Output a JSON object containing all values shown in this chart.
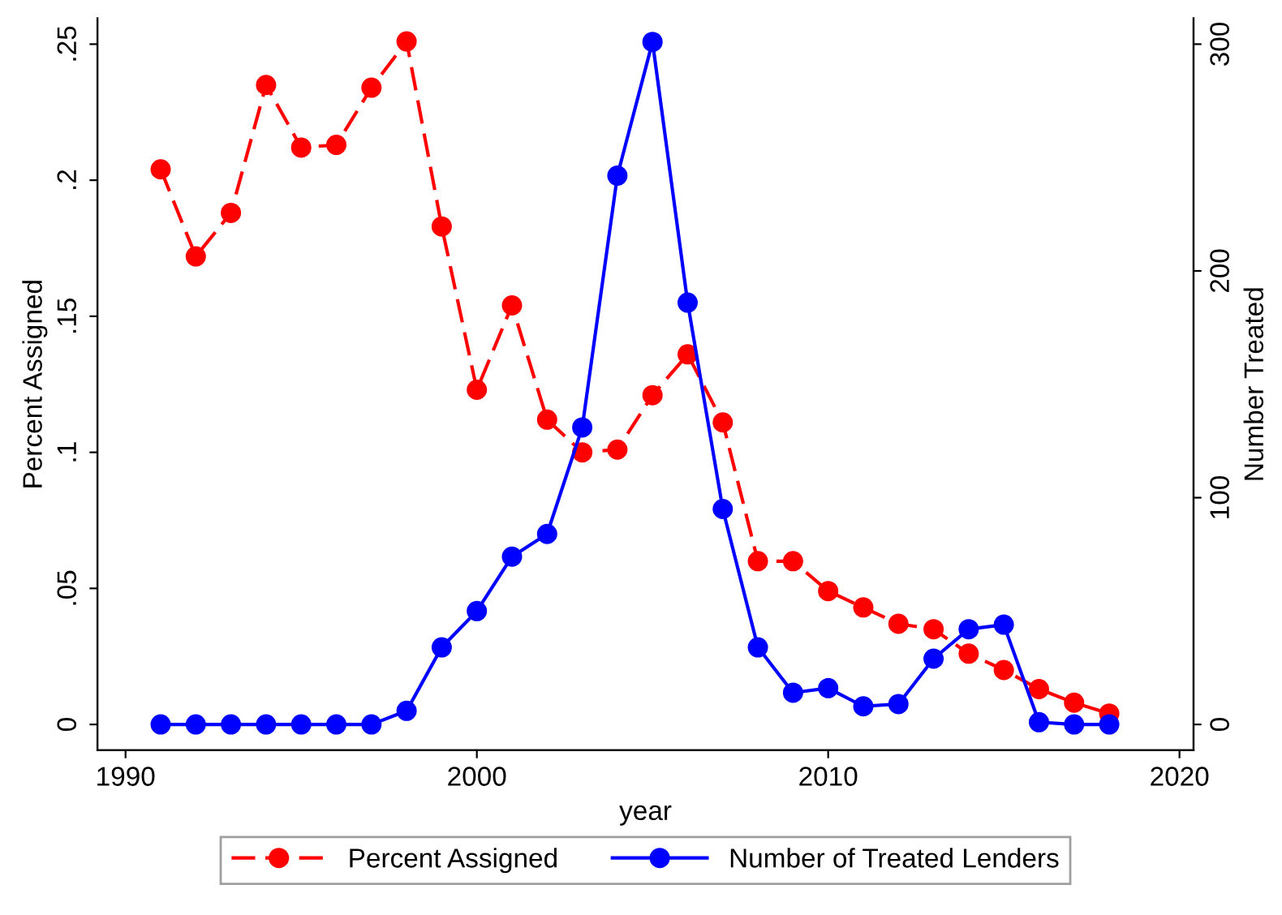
{
  "chart_data": {
    "type": "line",
    "xlabel": "year",
    "ylabel": "Percent Assigned",
    "y2label": "Number Treated",
    "x": [
      1991,
      1992,
      1993,
      1994,
      1995,
      1996,
      1997,
      1998,
      1999,
      2000,
      2001,
      2002,
      2003,
      2004,
      2005,
      2006,
      2007,
      2008,
      2009,
      2010,
      2011,
      2012,
      2013,
      2014,
      2015,
      2016,
      2017,
      2018
    ],
    "series": [
      {
        "name": "Percent Assigned",
        "color": "#ff0000",
        "line_style": "dashed",
        "values": [
          0.204,
          0.172,
          0.188,
          0.235,
          0.212,
          0.213,
          0.234,
          0.251,
          0.183,
          0.123,
          0.154,
          0.112,
          0.1,
          0.101,
          0.121,
          0.136,
          0.111,
          0.06,
          0.06,
          0.049,
          0.043,
          0.037,
          0.035,
          0.026,
          0.02,
          0.013,
          0.008,
          0.004
        ]
      },
      {
        "name": "Number of Treated Lenders",
        "color": "#0000ff",
        "line_style": "solid",
        "axis": "y2",
        "values": [
          0,
          0,
          0,
          0,
          0,
          0,
          0,
          6,
          34,
          50,
          74,
          84,
          131,
          242,
          301,
          186,
          95,
          34,
          14,
          16,
          8,
          9,
          29,
          42,
          44,
          1,
          0,
          0
        ]
      }
    ],
    "marker": "circle",
    "xlim": [
      1989.2,
      2020.4
    ],
    "xticks": [
      1990,
      2000,
      2010,
      2020
    ],
    "ylim": [
      -0.0095,
      0.2595
    ],
    "yticks": [
      {
        "value": 0,
        "label": "0"
      },
      {
        "value": 0.05,
        "label": ".05"
      },
      {
        "value": 0.1,
        "label": ".1"
      },
      {
        "value": 0.15,
        "label": ".15"
      },
      {
        "value": 0.2,
        "label": ".2"
      },
      {
        "value": 0.25,
        "label": ".25"
      }
    ],
    "y2lim": [
      -11.4,
      311.4
    ],
    "y2ticks": [
      0,
      100,
      200,
      300
    ],
    "grid": false,
    "legend": "bottom"
  }
}
